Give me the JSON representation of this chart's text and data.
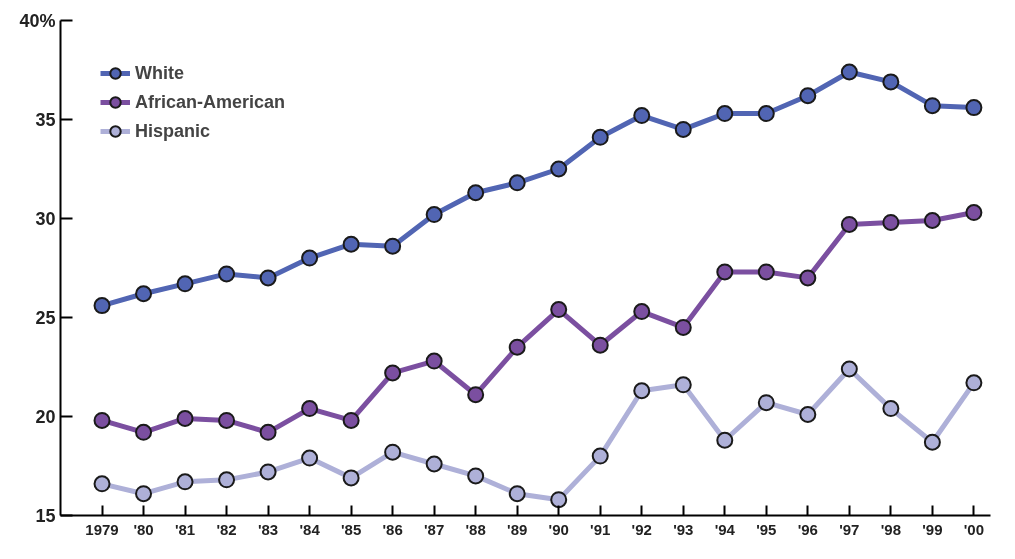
{
  "chart_data": {
    "type": "line",
    "categories": [
      "1979",
      "'80",
      "'81",
      "'82",
      "'83",
      "'84",
      "'85",
      "'86",
      "'87",
      "'88",
      "'89",
      "'90",
      "'91",
      "'92",
      "'93",
      "'94",
      "'95",
      "'96",
      "'97",
      "'98",
      "'99",
      "'00"
    ],
    "series": [
      {
        "name": "White",
        "color": "#5165b3",
        "values": [
          25.6,
          26.2,
          26.7,
          27.2,
          27.0,
          28.0,
          28.7,
          28.6,
          30.2,
          31.3,
          31.8,
          32.5,
          34.1,
          35.2,
          34.5,
          35.3,
          35.3,
          36.2,
          37.4,
          36.9,
          35.7,
          35.6
        ]
      },
      {
        "name": "African-American",
        "color": "#7b4fa0",
        "values": [
          19.8,
          19.2,
          19.9,
          19.8,
          19.2,
          20.4,
          19.8,
          22.2,
          22.8,
          21.1,
          23.5,
          25.4,
          23.6,
          25.3,
          24.5,
          27.3,
          27.3,
          27.0,
          29.7,
          29.8,
          29.9,
          30.3
        ]
      },
      {
        "name": "Hispanic",
        "color": "#aeb0d8",
        "values": [
          16.6,
          16.1,
          16.7,
          16.8,
          17.2,
          17.9,
          16.9,
          18.2,
          17.6,
          17.0,
          16.1,
          15.8,
          18.0,
          21.3,
          21.6,
          18.8,
          20.7,
          20.1,
          22.4,
          20.4,
          18.7,
          21.7
        ]
      }
    ],
    "ylim": [
      15,
      40
    ],
    "yticks": [
      15,
      20,
      25,
      30,
      35,
      {
        "value": 40,
        "label": "40%"
      }
    ],
    "grid": false,
    "legend": "top left",
    "marker": "circle",
    "line_style": "solid"
  }
}
